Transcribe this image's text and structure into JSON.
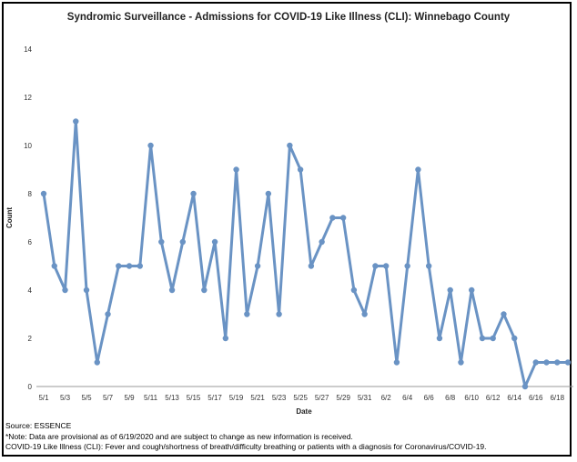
{
  "chart_data": {
    "type": "line",
    "title": "Syndromic Surveillance - Admissions for COVID-19 Like Illness (CLI): Winnebago County",
    "xlabel": "Date",
    "ylabel": "Count",
    "ylim": [
      0,
      14
    ],
    "yticks": [
      0,
      2,
      4,
      6,
      8,
      10,
      12,
      14
    ],
    "grid": false,
    "legend": "none",
    "x": [
      "5/1",
      "5/2",
      "5/3",
      "5/4",
      "5/5",
      "5/6",
      "5/7",
      "5/8",
      "5/9",
      "5/10",
      "5/11",
      "5/12",
      "5/13",
      "5/14",
      "5/15",
      "5/16",
      "5/17",
      "5/18",
      "5/19",
      "5/20",
      "5/21",
      "5/22",
      "5/23",
      "5/24",
      "5/25",
      "5/26",
      "5/27",
      "5/28",
      "5/29",
      "5/30",
      "5/31",
      "6/1",
      "6/2",
      "6/3",
      "6/4",
      "6/5",
      "6/6",
      "6/7",
      "6/8",
      "6/9",
      "6/10",
      "6/11",
      "6/12",
      "6/13",
      "6/14",
      "6/15",
      "6/16",
      "6/17",
      "6/18",
      "6/19"
    ],
    "x_tick_labels": [
      "5/1",
      "5/3",
      "5/5",
      "5/7",
      "5/9",
      "5/11",
      "5/13",
      "5/15",
      "5/17",
      "5/19",
      "5/21",
      "5/23",
      "5/25",
      "5/27",
      "5/29",
      "5/31",
      "6/2",
      "6/4",
      "6/6",
      "6/8",
      "6/10",
      "6/12",
      "6/14",
      "6/16",
      "6/18"
    ],
    "series": [
      {
        "values": [
          8,
          5,
          4,
          11,
          4,
          1,
          3,
          5,
          5,
          5,
          10,
          6,
          4,
          6,
          8,
          4,
          6,
          2,
          9,
          3,
          5,
          8,
          3,
          10,
          9,
          5,
          6,
          7,
          7,
          4,
          3,
          5,
          5,
          1,
          5,
          9,
          5,
          2,
          4,
          1,
          4,
          2,
          2,
          3,
          2,
          0,
          1,
          1,
          1,
          1
        ],
        "color": "#6a93c4"
      }
    ]
  },
  "footer": {
    "source": "Source: ESSENCE",
    "note": "*Note: Data are provisional as of 6/19/2020 and are subject to change as new information is received.",
    "definition": "COVID-19 Like Illness (CLI): Fever and cough/shortness of breath/difficulty breathing or patients with a diagnosis for Coronavirus/COVID-19."
  }
}
